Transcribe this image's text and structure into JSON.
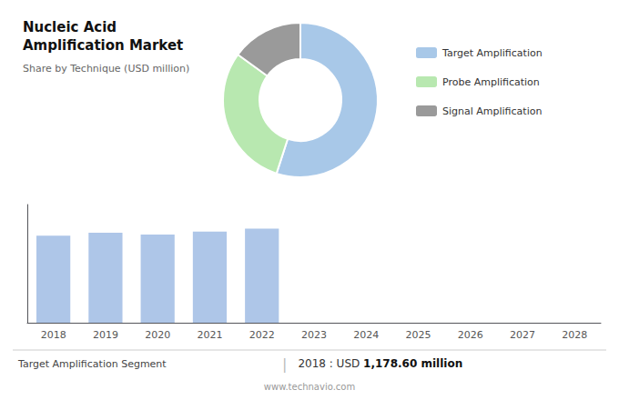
{
  "chart_data": [
    {
      "type": "pie",
      "title": "Nucleic Acid Amplification Market",
      "subtitle": "Share by Technique (USD million)",
      "categories": [
        "Target Amplification",
        "Probe Amplification",
        "Signal Amplification"
      ],
      "values": [
        55,
        30,
        15
      ],
      "colors": [
        "#a8c8e8",
        "#b8e8b0",
        "#9a9a9a"
      ],
      "legend": "right"
    },
    {
      "type": "bar",
      "categories": [
        "2018",
        "2019",
        "2020",
        "2021",
        "2022",
        "2023",
        "2024",
        "2025",
        "2026",
        "2027",
        "2028"
      ],
      "values": [
        1178.6,
        1220,
        1195,
        1235,
        1275,
        null,
        null,
        null,
        null,
        null,
        null
      ],
      "color": "#aec6e8",
      "ylim": [
        0,
        1600
      ],
      "grid": false,
      "tick_labels": "x",
      "annotations": [
        "Target Amplification Segment",
        "|",
        "2018 : USD ",
        "1,178.60 million",
        "www.technavio.com"
      ]
    }
  ]
}
